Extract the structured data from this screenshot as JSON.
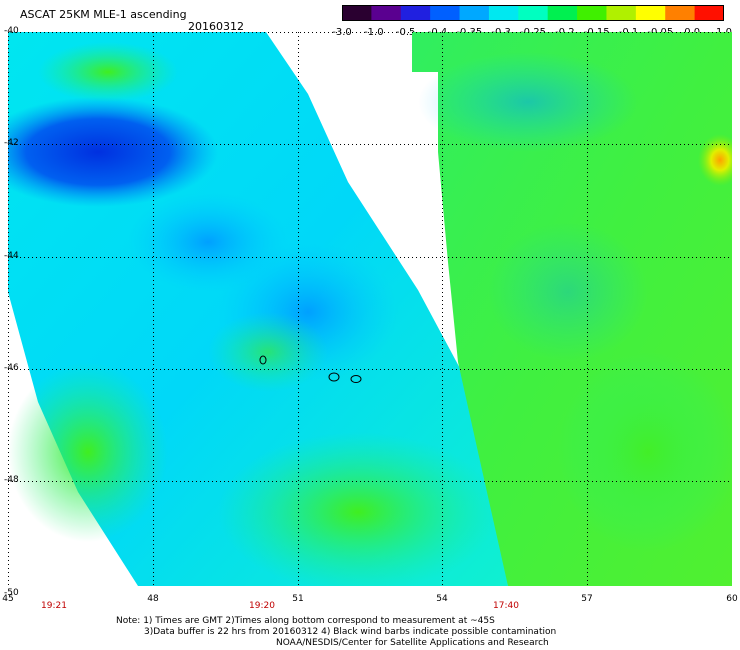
{
  "header": {
    "title": "ASCAT 25KM MLE-1 ascending",
    "date": "20160312"
  },
  "colorbar": {
    "labels": [
      "-3.0",
      "-1.0",
      "-0.5",
      "-0.4",
      "-0.35",
      "-0.3",
      "-0.25",
      "-0.2",
      "-0.15",
      "-0.1",
      "-0.05",
      "0.0",
      "1.0"
    ],
    "colors": [
      "#2a0030",
      "#5a0090",
      "#2020e0",
      "#0060ff",
      "#00a8ff",
      "#00e8f0",
      "#00ffc0",
      "#00f050",
      "#40f000",
      "#b0f000",
      "#ffff00",
      "#ff8000",
      "#ff1000"
    ]
  },
  "map": {
    "lat_labels": [
      "-40",
      "-42",
      "-44",
      "-46",
      "-48",
      "-50"
    ],
    "lon_labels": [
      "45",
      "48",
      "51",
      "54",
      "57",
      "60"
    ],
    "time_labels": [
      "19:21",
      "19:20",
      "17:40"
    ]
  },
  "notes": {
    "line1": "Note: 1) Times are GMT 2)Times along bottom correspond to measurement at ~45S",
    "line2": "3)Data buffer is 22 hrs from 20160312 4) Black wind barbs indicate possible contamination",
    "line3": "NOAA/NESDIS/Center for Satellite Applications and Research"
  }
}
